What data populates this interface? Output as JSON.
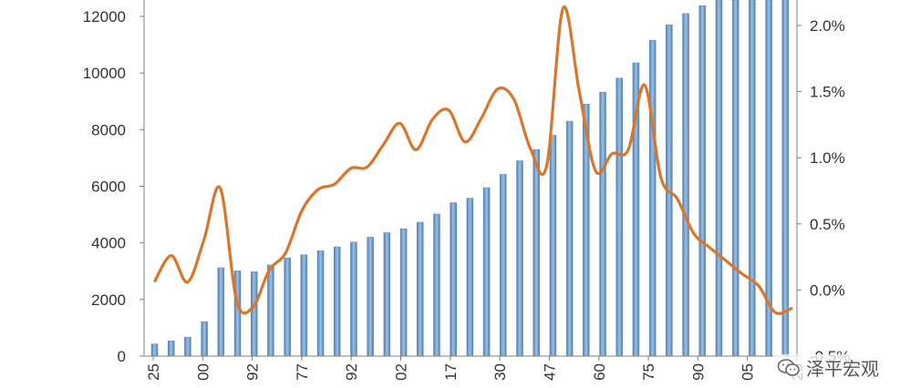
{
  "chart_data": {
    "type": "bar+line",
    "title": "",
    "xlabel": "",
    "ylabel": "",
    "y_left": {
      "lim": [
        0,
        12000
      ],
      "ticks": [
        0,
        2000,
        4000,
        6000,
        8000,
        10000,
        12000
      ]
    },
    "y_right": {
      "lim": [
        -0.5,
        2.0
      ],
      "ticks": [
        -0.5,
        0.0,
        0.5,
        1.0,
        1.5,
        2.0
      ],
      "tick_labels": [
        "-0.5%",
        "0.0%",
        "0.5%",
        "1.0%",
        "1.5%",
        "2.0%"
      ]
    },
    "x_tick_labels": [
      "25",
      "00",
      "92",
      "77",
      "92",
      "02",
      "17",
      "30",
      "47",
      "60",
      "75",
      "90",
      "05",
      "20"
    ],
    "series": [
      {
        "kind": "bar",
        "axis": "left",
        "color": "#6f9cc9",
        "values": [
          430,
          540,
          670,
          1220,
          3120,
          3010,
          2980,
          3220,
          3470,
          3580,
          3720,
          3860,
          4030,
          4200,
          4360,
          4500,
          4730,
          5020,
          5420,
          5580,
          5950,
          6420,
          6900,
          7300,
          7800,
          8300,
          8900,
          9320,
          9820,
          10360,
          11160,
          11700,
          12100,
          12380,
          12600,
          12800,
          12900,
          12950,
          13000
        ]
      },
      {
        "kind": "line",
        "axis": "right",
        "color": "#d9762a",
        "values": [
          0.07,
          0.26,
          0.06,
          0.38,
          0.77,
          -0.08,
          -0.13,
          0.15,
          0.28,
          0.6,
          0.76,
          0.8,
          0.92,
          0.93,
          1.1,
          1.26,
          1.06,
          1.29,
          1.36,
          1.12,
          1.3,
          1.52,
          1.44,
          1.07,
          0.94,
          2.13,
          1.5,
          0.9,
          1.03,
          1.06,
          1.55,
          0.85,
          0.69,
          0.43,
          0.32,
          0.22,
          0.12,
          0.03,
          -0.17,
          -0.14
        ]
      }
    ],
    "grid": false,
    "legend": "none"
  },
  "watermark": {
    "text": "泽平宏观",
    "icon": "wechat-icon"
  }
}
